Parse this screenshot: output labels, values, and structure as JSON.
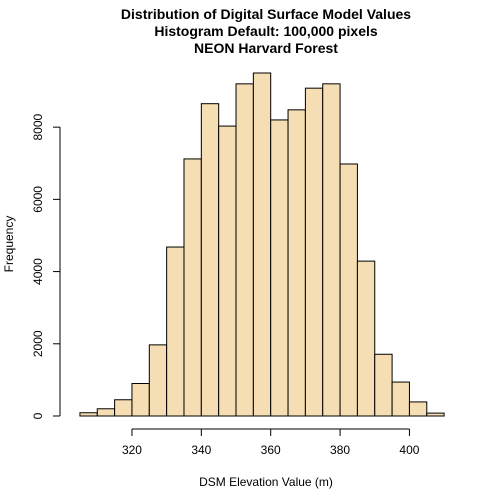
{
  "chart_data": {
    "type": "bar",
    "subtype": "histogram",
    "title": "Distribution of Digital Surface Model Values",
    "subtitle_lines": [
      "Histogram Default: 100,000 pixels",
      "NEON Harvard Forest"
    ],
    "xlabel": "DSM Elevation Value (m)",
    "ylabel": "Frequency",
    "bin_edges": [
      305,
      310,
      315,
      320,
      325,
      330,
      335,
      340,
      345,
      350,
      355,
      360,
      365,
      370,
      375,
      380,
      385,
      390,
      395,
      400,
      405,
      410
    ],
    "values": [
      90,
      200,
      450,
      900,
      1970,
      4680,
      7120,
      8650,
      8030,
      9200,
      9500,
      8200,
      8480,
      9080,
      9200,
      6980,
      4290,
      1710,
      940,
      390,
      80
    ],
    "xlim": [
      303,
      414
    ],
    "ylim": [
      0,
      9500
    ],
    "x_ticks": [
      320,
      340,
      360,
      380,
      400
    ],
    "y_ticks": [
      0,
      2000,
      4000,
      6000,
      8000
    ],
    "bar_fill": "#f5deb3",
    "bar_stroke": "#000000",
    "grid": false,
    "legend": "none"
  }
}
